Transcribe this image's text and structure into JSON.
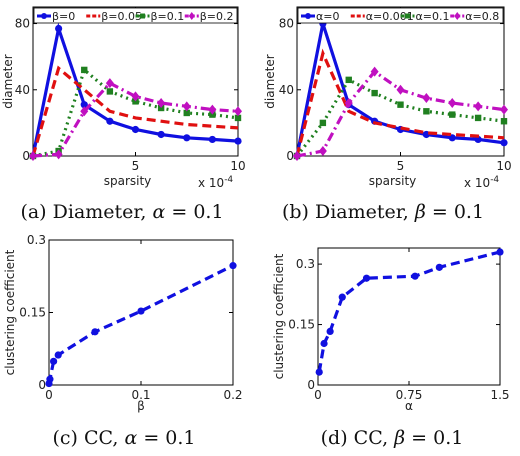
{
  "chart_data": [
    {
      "type": "line",
      "xlabel": "sparsity",
      "ylabel": "diameter",
      "x_multiplier": "x 10",
      "x_multiplier_exp": "-4",
      "xlim": [
        0,
        10
      ],
      "ylim": [
        0,
        90
      ],
      "xticks": [
        "5",
        "10"
      ],
      "xticks_v": [
        5,
        10
      ],
      "yticks": [
        "0",
        "40",
        "80"
      ],
      "yticks_v": [
        0,
        40,
        80
      ],
      "legend_position": "top",
      "legend_symbol": "β",
      "x": [
        0,
        1.25,
        2.5,
        3.75,
        5,
        6.25,
        7.5,
        8.75,
        10
      ],
      "series": [
        {
          "name": "=0",
          "color": "#1010e0",
          "dash": "solid",
          "marker": "circle",
          "values": [
            0,
            77,
            31,
            21,
            16,
            13,
            11,
            10,
            9
          ]
        },
        {
          "name": "=0.05",
          "color": "#e01010",
          "dash": "dashed",
          "marker": "none",
          "values": [
            0,
            53,
            40,
            27,
            23,
            21,
            19,
            18,
            17
          ]
        },
        {
          "name": "=0.1",
          "color": "#208020",
          "dash": "dotted",
          "marker": "square",
          "values": [
            0,
            3,
            52,
            39,
            33,
            29,
            26,
            25,
            23
          ]
        },
        {
          "name": "=0.2",
          "color": "#c010c0",
          "dash": "dashdot",
          "marker": "diamond",
          "values": [
            0,
            1,
            27,
            44,
            36,
            32,
            30,
            28,
            27
          ]
        }
      ],
      "caption_prefix": "(a) Diameter, ",
      "caption_sym": "α",
      "caption_suffix": " = 0.1"
    },
    {
      "type": "line",
      "xlabel": "sparsity",
      "ylabel": "diameter",
      "x_multiplier": "x 10",
      "x_multiplier_exp": "-4",
      "xlim": [
        0,
        10
      ],
      "ylim": [
        0,
        90
      ],
      "xticks": [
        "5",
        "10"
      ],
      "xticks_v": [
        5,
        10
      ],
      "yticks": [
        "0",
        "40",
        "80"
      ],
      "yticks_v": [
        0,
        40,
        80
      ],
      "legend_position": "top",
      "legend_symbol": "α",
      "x": [
        0,
        1.25,
        2.5,
        3.75,
        5,
        6.25,
        7.5,
        8.75,
        10
      ],
      "series": [
        {
          "name": "=0",
          "color": "#1010e0",
          "dash": "solid",
          "marker": "circle",
          "values": [
            0,
            80,
            31,
            21,
            16,
            13,
            11,
            10,
            8
          ]
        },
        {
          "name": "=0.001",
          "color": "#e01010",
          "dash": "dashed",
          "marker": "none",
          "values": [
            0,
            62,
            27,
            20,
            17,
            14,
            13,
            12,
            11
          ]
        },
        {
          "name": "=0.1",
          "color": "#208020",
          "dash": "dotted",
          "marker": "square",
          "values": [
            0,
            20,
            46,
            38,
            31,
            27,
            25,
            23,
            21
          ]
        },
        {
          "name": "=0.8",
          "color": "#c010c0",
          "dash": "dashdot",
          "marker": "diamond",
          "values": [
            0,
            3,
            32,
            51,
            40,
            35,
            32,
            30,
            28
          ]
        }
      ],
      "caption_prefix": "(b) Diameter, ",
      "caption_sym": "β",
      "caption_suffix": " = 0.1"
    },
    {
      "type": "line",
      "xlabel": "β",
      "ylabel": "clustering coefficient",
      "xlim": [
        0,
        0.2
      ],
      "ylim": [
        0,
        0.3
      ],
      "xticks": [
        "0",
        "0.1",
        "0.2"
      ],
      "xticks_v": [
        0,
        0.1,
        0.2
      ],
      "yticks": [
        "0",
        "0.15",
        "0.3"
      ],
      "yticks_v": [
        0,
        0.15,
        0.3
      ],
      "series": [
        {
          "name": "",
          "color": "#1010e0",
          "dash": "dashed",
          "marker": "circle",
          "x": [
            0,
            0.001,
            0.005,
            0.01,
            0.05,
            0.1,
            0.2
          ],
          "values": [
            0.003,
            0.012,
            0.049,
            0.062,
            0.11,
            0.153,
            0.247
          ]
        }
      ],
      "caption_prefix": "(c) CC, ",
      "caption_sym": "α",
      "caption_suffix": " = 0.1"
    },
    {
      "type": "line",
      "xlabel": "α",
      "ylabel": "clustering coefficient",
      "xlim": [
        0,
        1.5
      ],
      "ylim": [
        0,
        0.34
      ],
      "xticks": [
        "0",
        "0.75",
        "1.5"
      ],
      "xticks_v": [
        0,
        0.75,
        1.5
      ],
      "yticks": [
        "0",
        "0.15",
        "0.3"
      ],
      "yticks_v": [
        0,
        0.15,
        0.3
      ],
      "series": [
        {
          "name": "",
          "color": "#1010e0",
          "dash": "dashed",
          "marker": "circle",
          "x": [
            0.01,
            0.05,
            0.1,
            0.2,
            0.4,
            0.8,
            1.0,
            1.5
          ],
          "values": [
            0.032,
            0.103,
            0.133,
            0.218,
            0.265,
            0.27,
            0.292,
            0.33
          ]
        }
      ],
      "caption_prefix": "(d) CC, ",
      "caption_sym": "β",
      "caption_suffix": " = 0.1"
    }
  ]
}
